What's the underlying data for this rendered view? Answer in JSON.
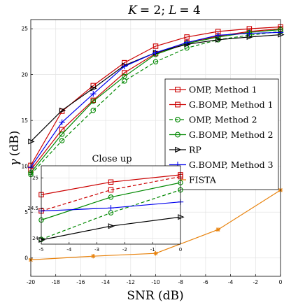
{
  "chart_data": [
    {
      "type": "line",
      "title": "K = 2; L = 4",
      "title_parts": {
        "k_var": "K",
        "k_val": "= 2;",
        "l_var": "L",
        "l_val": "= 4"
      },
      "xlabel": "SNR (dB)",
      "ylabel_symbol": "γ",
      "ylabel_unit": "(dB)",
      "xlim": [
        -20,
        0
      ],
      "ylim": [
        -2,
        26
      ],
      "xticks": [
        -20,
        -18,
        -16,
        -14,
        -12,
        -10,
        -8,
        -6,
        -4,
        -2,
        0
      ],
      "yticks": [
        0,
        5,
        10,
        15,
        20,
        25
      ],
      "grid": true,
      "legend_position": "right",
      "x": [
        -20,
        -17.5,
        -15,
        -12.5,
        -10,
        -7.5,
        -5,
        -2.5,
        0
      ],
      "series": [
        {
          "name": "OMP, Method 1",
          "color": "#cc0000",
          "dash": "solid",
          "marker": "square",
          "values": [
            9.6,
            14.0,
            17.2,
            20.2,
            22.3,
            23.5,
            24.2,
            24.7,
            25.0
          ]
        },
        {
          "name": "G.BOMP, Method 1",
          "color": "#cc0000",
          "dash": "solid",
          "marker": "square",
          "values": [
            10.1,
            16.0,
            18.8,
            21.3,
            23.1,
            24.1,
            24.7,
            25.0,
            25.2
          ]
        },
        {
          "name": "OMP, Method 2",
          "color": "#008800",
          "dash": "dashed",
          "marker": "circle",
          "values": [
            9.1,
            12.8,
            16.1,
            19.3,
            21.4,
            22.9,
            23.8,
            24.3,
            24.7
          ]
        },
        {
          "name": "G.BOMP, Method 2",
          "color": "#008800",
          "dash": "solid",
          "marker": "circle",
          "values": [
            9.3,
            13.5,
            17.1,
            19.8,
            22.2,
            23.4,
            24.1,
            24.6,
            24.9
          ]
        },
        {
          "name": "RP",
          "color": "#000000",
          "dash": "solid",
          "marker": "triangle-right",
          "values": [
            12.7,
            16.1,
            18.5,
            21.0,
            22.4,
            23.3,
            23.8,
            24.1,
            24.35
          ]
        },
        {
          "name": "G.BOMP, Method 3",
          "color": "#0000ee",
          "dash": "solid",
          "marker": "plus",
          "values": [
            9.9,
            14.8,
            17.9,
            20.9,
            22.4,
            23.5,
            24.3,
            24.5,
            24.6
          ]
        },
        {
          "name": "FISTA",
          "color": "#e8820c",
          "dash": "solid",
          "marker": "asterisk",
          "values": [
            -0.2,
            null,
            0.2,
            null,
            0.5,
            null,
            3.1,
            null,
            7.4
          ]
        }
      ]
    },
    {
      "type": "line",
      "title": "Close up",
      "xlim": [
        -5,
        0
      ],
      "ylim": [
        23.9,
        25.2
      ],
      "xticks": [
        -5,
        -4,
        -3,
        -2,
        -1,
        0
      ],
      "yticks": [
        24,
        24.5,
        25
      ],
      "ytick_labels": [
        "24",
        "24.5",
        "25"
      ],
      "grid": true,
      "x": [
        -5,
        -2.5,
        0
      ],
      "series": [
        {
          "name": "OMP, Method 1",
          "color": "#cc0000",
          "dash": "dashed",
          "marker": "square",
          "values": [
            24.45,
            24.8,
            25.02
          ]
        },
        {
          "name": "G.BOMP, Method 1",
          "color": "#cc0000",
          "dash": "solid",
          "marker": "square",
          "values": [
            24.72,
            24.93,
            25.05
          ]
        },
        {
          "name": "OMP, Method 2",
          "color": "#008800",
          "dash": "dashed",
          "marker": "circle",
          "values": [
            23.98,
            24.42,
            24.8
          ]
        },
        {
          "name": "G.BOMP, Method 2",
          "color": "#008800",
          "dash": "solid",
          "marker": "circle",
          "values": [
            24.3,
            24.68,
            24.92
          ]
        },
        {
          "name": "RP",
          "color": "#000000",
          "dash": "solid",
          "marker": "triangle-right",
          "values": [
            23.97,
            24.2,
            24.35
          ]
        },
        {
          "name": "G.BOMP, Method 3",
          "color": "#0000ee",
          "dash": "solid",
          "marker": "plus",
          "values": [
            24.45,
            24.5,
            24.6
          ]
        }
      ]
    }
  ]
}
